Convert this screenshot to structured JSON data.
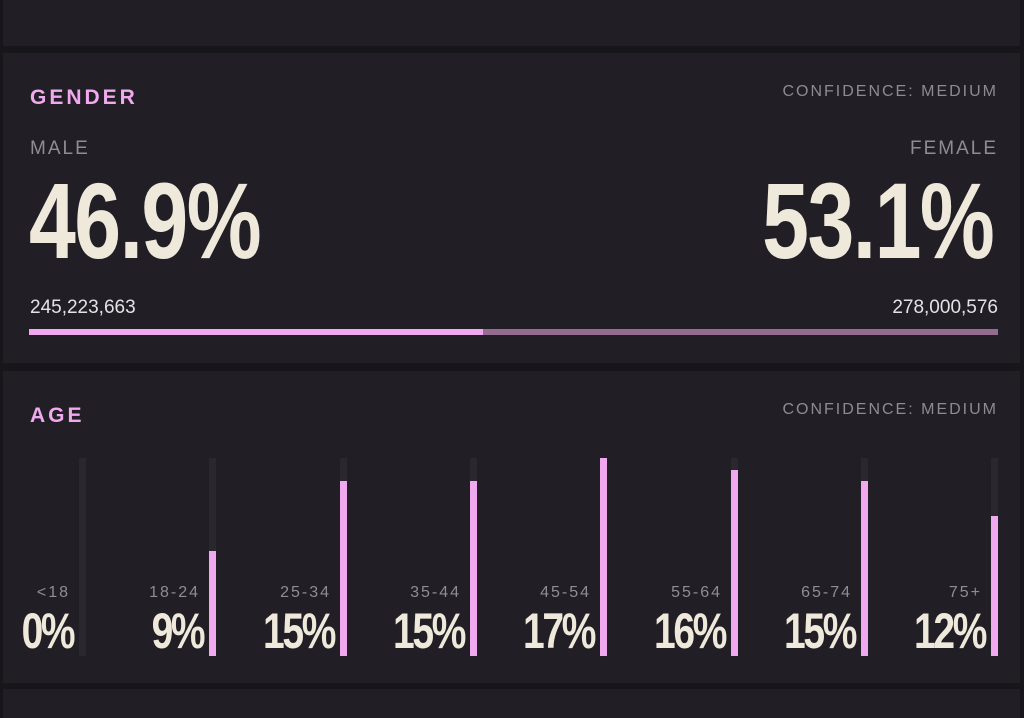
{
  "gender": {
    "title": "GENDER",
    "confidence": "CONFIDENCE: MEDIUM",
    "male": {
      "label": "MALE",
      "percent": "46.9%",
      "count": "245,223,663",
      "share": 0.469
    },
    "female": {
      "label": "FEMALE",
      "percent": "53.1%",
      "count": "278,000,576",
      "share": 0.531
    },
    "colors": {
      "male": "#f0a8ee",
      "female": "#946c90"
    }
  },
  "age": {
    "title": "AGE",
    "confidence": "CONFIDENCE: MEDIUM",
    "max_percent": 17,
    "buckets": [
      {
        "label": "<18",
        "percent": "0%",
        "value": 0
      },
      {
        "label": "18-24",
        "percent": "9%",
        "value": 9
      },
      {
        "label": "25-34",
        "percent": "15%",
        "value": 15
      },
      {
        "label": "35-44",
        "percent": "15%",
        "value": 15
      },
      {
        "label": "45-54",
        "percent": "17%",
        "value": 17
      },
      {
        "label": "55-64",
        "percent": "16%",
        "value": 16
      },
      {
        "label": "65-74",
        "percent": "15%",
        "value": 15
      },
      {
        "label": "75+",
        "percent": "12%",
        "value": 12
      }
    ]
  },
  "colors": {
    "accent": "#f0a8ee",
    "background": "#17161a",
    "panel": "#211f25",
    "text": "#efe9dc"
  }
}
